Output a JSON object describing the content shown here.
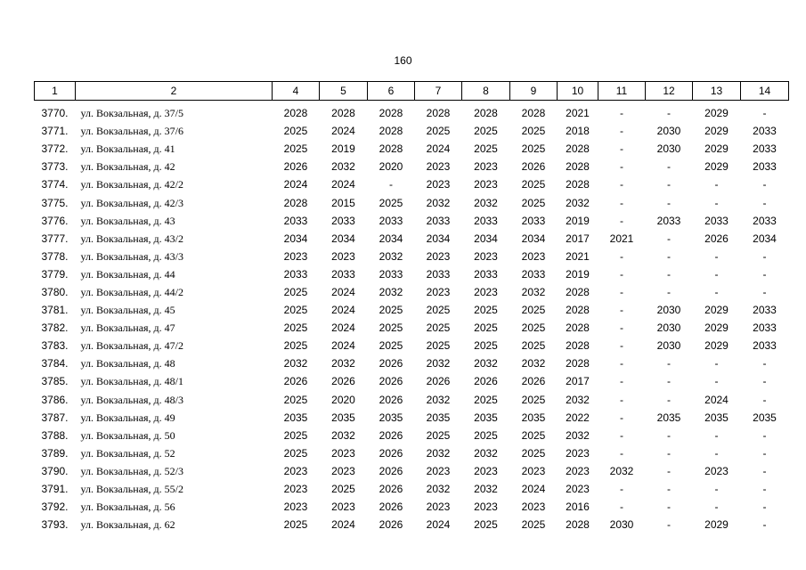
{
  "page_number": "160",
  "table": {
    "header": [
      "1",
      "2",
      "4",
      "5",
      "6",
      "7",
      "8",
      "9",
      "10",
      "11",
      "12",
      "13",
      "14"
    ],
    "rows": [
      [
        "3770.",
        "ул. Вокзальная, д. 37/5",
        "2028",
        "2028",
        "2028",
        "2028",
        "2028",
        "2028",
        "2021",
        "-",
        "-",
        "2029",
        "-"
      ],
      [
        "3771.",
        "ул. Вокзальная, д. 37/6",
        "2025",
        "2024",
        "2028",
        "2025",
        "2025",
        "2025",
        "2018",
        "-",
        "2030",
        "2029",
        "2033"
      ],
      [
        "3772.",
        "ул. Вокзальная, д. 41",
        "2025",
        "2019",
        "2028",
        "2024",
        "2025",
        "2025",
        "2028",
        "-",
        "2030",
        "2029",
        "2033"
      ],
      [
        "3773.",
        "ул. Вокзальная, д. 42",
        "2026",
        "2032",
        "2020",
        "2023",
        "2023",
        "2026",
        "2028",
        "-",
        "-",
        "2029",
        "2033"
      ],
      [
        "3774.",
        "ул. Вокзальная, д. 42/2",
        "2024",
        "2024",
        "-",
        "2023",
        "2023",
        "2025",
        "2028",
        "-",
        "-",
        "-",
        "-"
      ],
      [
        "3775.",
        "ул. Вокзальная, д. 42/3",
        "2028",
        "2015",
        "2025",
        "2032",
        "2032",
        "2025",
        "2032",
        "-",
        "-",
        "-",
        "-"
      ],
      [
        "3776.",
        "ул. Вокзальная, д. 43",
        "2033",
        "2033",
        "2033",
        "2033",
        "2033",
        "2033",
        "2019",
        "-",
        "2033",
        "2033",
        "2033"
      ],
      [
        "3777.",
        "ул. Вокзальная, д. 43/2",
        "2034",
        "2034",
        "2034",
        "2034",
        "2034",
        "2034",
        "2017",
        "2021",
        "-",
        "2026",
        "2034"
      ],
      [
        "3778.",
        "ул. Вокзальная, д. 43/3",
        "2023",
        "2023",
        "2032",
        "2023",
        "2023",
        "2023",
        "2021",
        "-",
        "-",
        "-",
        "-"
      ],
      [
        "3779.",
        "ул. Вокзальная, д. 44",
        "2033",
        "2033",
        "2033",
        "2033",
        "2033",
        "2033",
        "2019",
        "-",
        "-",
        "-",
        "-"
      ],
      [
        "3780.",
        "ул. Вокзальная, д. 44/2",
        "2025",
        "2024",
        "2032",
        "2023",
        "2023",
        "2032",
        "2028",
        "-",
        "-",
        "-",
        "-"
      ],
      [
        "3781.",
        "ул. Вокзальная, д. 45",
        "2025",
        "2024",
        "2025",
        "2025",
        "2025",
        "2025",
        "2028",
        "-",
        "2030",
        "2029",
        "2033"
      ],
      [
        "3782.",
        "ул. Вокзальная, д. 47",
        "2025",
        "2024",
        "2025",
        "2025",
        "2025",
        "2025",
        "2028",
        "-",
        "2030",
        "2029",
        "2033"
      ],
      [
        "3783.",
        "ул. Вокзальная, д. 47/2",
        "2025",
        "2024",
        "2025",
        "2025",
        "2025",
        "2025",
        "2028",
        "-",
        "2030",
        "2029",
        "2033"
      ],
      [
        "3784.",
        "ул. Вокзальная, д. 48",
        "2032",
        "2032",
        "2026",
        "2032",
        "2032",
        "2032",
        "2028",
        "-",
        "-",
        "-",
        "-"
      ],
      [
        "3785.",
        "ул. Вокзальная, д. 48/1",
        "2026",
        "2026",
        "2026",
        "2026",
        "2026",
        "2026",
        "2017",
        "-",
        "-",
        "-",
        "-"
      ],
      [
        "3786.",
        "ул. Вокзальная, д. 48/3",
        "2025",
        "2020",
        "2026",
        "2032",
        "2025",
        "2025",
        "2032",
        "-",
        "-",
        "2024",
        "-"
      ],
      [
        "3787.",
        "ул. Вокзальная, д. 49",
        "2035",
        "2035",
        "2035",
        "2035",
        "2035",
        "2035",
        "2022",
        "-",
        "2035",
        "2035",
        "2035"
      ],
      [
        "3788.",
        "ул. Вокзальная, д. 50",
        "2025",
        "2032",
        "2026",
        "2025",
        "2025",
        "2025",
        "2032",
        "-",
        "-",
        "-",
        "-"
      ],
      [
        "3789.",
        "ул. Вокзальная, д. 52",
        "2025",
        "2023",
        "2026",
        "2032",
        "2032",
        "2025",
        "2023",
        "-",
        "-",
        "-",
        "-"
      ],
      [
        "3790.",
        "ул. Вокзальная, д. 52/3",
        "2023",
        "2023",
        "2026",
        "2023",
        "2023",
        "2023",
        "2023",
        "2032",
        "-",
        "2023",
        "-"
      ],
      [
        "3791.",
        "ул. Вокзальная, д. 55/2",
        "2023",
        "2025",
        "2026",
        "2032",
        "2032",
        "2024",
        "2023",
        "-",
        "-",
        "-",
        "-"
      ],
      [
        "3792.",
        "ул. Вокзальная, д. 56",
        "2023",
        "2023",
        "2026",
        "2023",
        "2023",
        "2023",
        "2016",
        "-",
        "-",
        "-",
        "-"
      ],
      [
        "3793.",
        "ул. Вокзальная, д. 62",
        "2025",
        "2024",
        "2026",
        "2024",
        "2025",
        "2025",
        "2028",
        "2030",
        "-",
        "2029",
        "-"
      ]
    ]
  }
}
